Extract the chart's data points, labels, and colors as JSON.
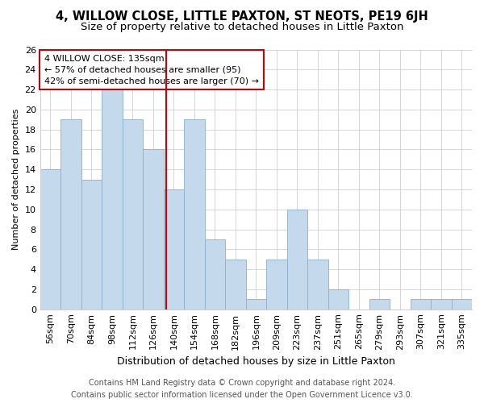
{
  "title": "4, WILLOW CLOSE, LITTLE PAXTON, ST NEOTS, PE19 6JH",
  "subtitle": "Size of property relative to detached houses in Little Paxton",
  "xlabel": "Distribution of detached houses by size in Little Paxton",
  "ylabel": "Number of detached properties",
  "categories": [
    "56sqm",
    "70sqm",
    "84sqm",
    "98sqm",
    "112sqm",
    "126sqm",
    "140sqm",
    "154sqm",
    "168sqm",
    "182sqm",
    "196sqm",
    "209sqm",
    "223sqm",
    "237sqm",
    "251sqm",
    "265sqm",
    "279sqm",
    "293sqm",
    "307sqm",
    "321sqm",
    "335sqm"
  ],
  "values": [
    14,
    19,
    13,
    22,
    19,
    16,
    12,
    19,
    7,
    5,
    1,
    5,
    10,
    5,
    2,
    0,
    1,
    0,
    1,
    1,
    1
  ],
  "bar_color": "#c5d9ed",
  "bar_edgecolor": "#8ab0cc",
  "vline_color": "#cc0000",
  "annotation_line1": "4 WILLOW CLOSE: 135sqm",
  "annotation_line2": "← 57% of detached houses are smaller (95)",
  "annotation_line3": "42% of semi-detached houses are larger (70) →",
  "annotation_box_color": "#ffffff",
  "annotation_box_edgecolor": "#cc0000",
  "ylim": [
    0,
    26
  ],
  "yticks": [
    0,
    2,
    4,
    6,
    8,
    10,
    12,
    14,
    16,
    18,
    20,
    22,
    24,
    26
  ],
  "background_color": "#ffffff",
  "grid_color": "#d0d0d0",
  "footer_line1": "Contains HM Land Registry data © Crown copyright and database right 2024.",
  "footer_line2": "Contains public sector information licensed under the Open Government Licence v3.0.",
  "title_fontsize": 10.5,
  "subtitle_fontsize": 9.5,
  "xlabel_fontsize": 9,
  "ylabel_fontsize": 8,
  "tick_fontsize": 8,
  "footer_fontsize": 7,
  "annotation_fontsize": 8,
  "vline_x_index": 5.64
}
